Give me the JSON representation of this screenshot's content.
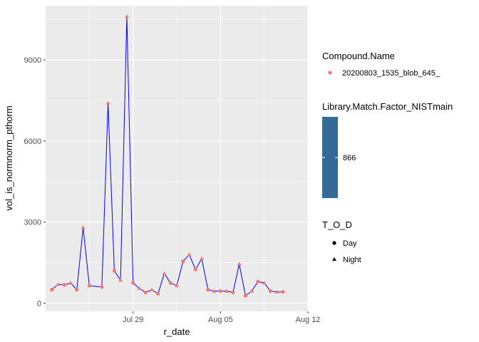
{
  "chart_data": {
    "type": "line",
    "title": "",
    "xlabel": "r_date",
    "ylabel": "vol_is_normnorm_pthorm",
    "x_ticks": [
      {
        "date": "2020-07-29",
        "label": "Jul 29"
      },
      {
        "date": "2020-08-05",
        "label": "Aug 05"
      },
      {
        "date": "2020-08-12",
        "label": "Aug 12"
      }
    ],
    "y_ticks": [
      0,
      3000,
      6000,
      9000
    ],
    "ylim": [
      -300,
      11000
    ],
    "xlim": [
      "2020-07-22",
      "2020-08-12"
    ],
    "line_color": "#0000ff",
    "point_color": "#f8766d",
    "panel_bg": "#ebebeb",
    "grid": true,
    "series": [
      {
        "values": [
          {
            "x": "2020-07-22T12:00",
            "y": 500,
            "tod": "Day"
          },
          {
            "x": "2020-07-23T00:00",
            "y": 700,
            "tod": "Night"
          },
          {
            "x": "2020-07-23T12:00",
            "y": 680,
            "tod": "Day"
          },
          {
            "x": "2020-07-24T00:00",
            "y": 750,
            "tod": "Night"
          },
          {
            "x": "2020-07-24T12:00",
            "y": 500,
            "tod": "Day"
          },
          {
            "x": "2020-07-25T00:00",
            "y": 2800,
            "tod": "Night"
          },
          {
            "x": "2020-07-25T12:00",
            "y": 650,
            "tod": "Day"
          },
          {
            "x": "2020-07-26T12:00",
            "y": 600,
            "tod": "Day"
          },
          {
            "x": "2020-07-27T00:00",
            "y": 7400,
            "tod": "Night"
          },
          {
            "x": "2020-07-27T12:00",
            "y": 1200,
            "tod": "Day"
          },
          {
            "x": "2020-07-28T00:00",
            "y": 850,
            "tod": "Night"
          },
          {
            "x": "2020-07-28T12:00",
            "y": 10600,
            "tod": "Night"
          },
          {
            "x": "2020-07-29T00:00",
            "y": 750,
            "tod": "Day"
          },
          {
            "x": "2020-07-29T12:00",
            "y": 550,
            "tod": "Night"
          },
          {
            "x": "2020-07-30T00:00",
            "y": 400,
            "tod": "Day"
          },
          {
            "x": "2020-07-30T12:00",
            "y": 500,
            "tod": "Night"
          },
          {
            "x": "2020-07-31T00:00",
            "y": 350,
            "tod": "Day"
          },
          {
            "x": "2020-07-31T12:00",
            "y": 1100,
            "tod": "Night"
          },
          {
            "x": "2020-08-01T00:00",
            "y": 750,
            "tod": "Day"
          },
          {
            "x": "2020-08-01T12:00",
            "y": 650,
            "tod": "Night"
          },
          {
            "x": "2020-08-02T00:00",
            "y": 1550,
            "tod": "Day"
          },
          {
            "x": "2020-08-02T12:00",
            "y": 1800,
            "tod": "Night"
          },
          {
            "x": "2020-08-03T00:00",
            "y": 1250,
            "tod": "Day"
          },
          {
            "x": "2020-08-03T12:00",
            "y": 1650,
            "tod": "Night"
          },
          {
            "x": "2020-08-04T00:00",
            "y": 500,
            "tod": "Day"
          },
          {
            "x": "2020-08-04T12:00",
            "y": 450,
            "tod": "Night"
          },
          {
            "x": "2020-08-05T00:00",
            "y": 450,
            "tod": "Day"
          },
          {
            "x": "2020-08-05T12:00",
            "y": 450,
            "tod": "Night"
          },
          {
            "x": "2020-08-06T00:00",
            "y": 400,
            "tod": "Day"
          },
          {
            "x": "2020-08-06T12:00",
            "y": 1450,
            "tod": "Night"
          },
          {
            "x": "2020-08-07T00:00",
            "y": 280,
            "tod": "Day"
          },
          {
            "x": "2020-08-07T12:00",
            "y": 450,
            "tod": "Night"
          },
          {
            "x": "2020-08-08T00:00",
            "y": 800,
            "tod": "Day"
          },
          {
            "x": "2020-08-08T12:00",
            "y": 750,
            "tod": "Night"
          },
          {
            "x": "2020-08-09T00:00",
            "y": 450,
            "tod": "Day"
          },
          {
            "x": "2020-08-09T12:00",
            "y": 420,
            "tod": "Night"
          },
          {
            "x": "2020-08-10T00:00",
            "y": 420,
            "tod": "Day"
          }
        ]
      }
    ],
    "legends": {
      "compound": {
        "title": "Compound.Name",
        "entries": [
          "20200803_1535_blob_645_"
        ]
      },
      "match_factor": {
        "title": "Library.Match.Factor_NISTmain",
        "label": "866",
        "color": "#336a98"
      },
      "tod": {
        "title": "T_O_D",
        "entries": [
          {
            "label": "Day",
            "shape": "circle"
          },
          {
            "label": "Night",
            "shape": "triangle"
          }
        ]
      }
    },
    "legend_position": "right"
  }
}
